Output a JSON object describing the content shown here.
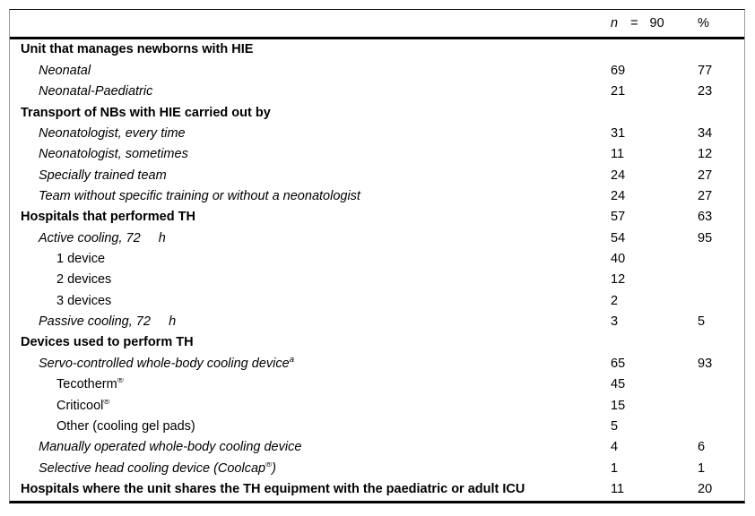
{
  "table": {
    "header": {
      "n_symbol": "n",
      "equals": "=",
      "total": "90",
      "percent": "%"
    },
    "rows": [
      {
        "level": 1,
        "bold": true,
        "italic": false,
        "label": "Unit that manages newborns with HIE",
        "sup": "",
        "suffix": "",
        "n": "",
        "pct": ""
      },
      {
        "level": 2,
        "bold": false,
        "italic": true,
        "label": "Neonatal",
        "sup": "",
        "suffix": "",
        "n": "69",
        "pct": "77"
      },
      {
        "level": 2,
        "bold": false,
        "italic": true,
        "label": "Neonatal-Paediatric",
        "sup": "",
        "suffix": "",
        "n": "21",
        "pct": "23"
      },
      {
        "level": 1,
        "bold": true,
        "italic": false,
        "label": "Transport of NBs with HIE carried out by",
        "sup": "",
        "suffix": "",
        "n": "",
        "pct": ""
      },
      {
        "level": 2,
        "bold": false,
        "italic": true,
        "label": "Neonatologist, every time",
        "sup": "",
        "suffix": "",
        "n": "31",
        "pct": "34"
      },
      {
        "level": 2,
        "bold": false,
        "italic": true,
        "label": "Neonatologist, sometimes",
        "sup": "",
        "suffix": "",
        "n": "11",
        "pct": "12"
      },
      {
        "level": 2,
        "bold": false,
        "italic": true,
        "label": "Specially trained team",
        "sup": "",
        "suffix": "",
        "n": "24",
        "pct": "27"
      },
      {
        "level": 2,
        "bold": false,
        "italic": true,
        "label": "Team without specific training or without a neonatologist",
        "sup": "",
        "suffix": "",
        "n": "24",
        "pct": "27"
      },
      {
        "level": 1,
        "bold": true,
        "italic": false,
        "label": "Hospitals that performed TH",
        "sup": "",
        "suffix": "",
        "n": "57",
        "pct": "63"
      },
      {
        "level": 2,
        "bold": false,
        "italic": true,
        "label": "Active cooling, 72     h",
        "sup": "",
        "suffix": "",
        "n": "54",
        "pct": "95"
      },
      {
        "level": 3,
        "bold": false,
        "italic": false,
        "label": "1 device",
        "sup": "",
        "suffix": "",
        "n": "40",
        "pct": ""
      },
      {
        "level": 3,
        "bold": false,
        "italic": false,
        "label": "2 devices",
        "sup": "",
        "suffix": "",
        "n": "12",
        "pct": ""
      },
      {
        "level": 3,
        "bold": false,
        "italic": false,
        "label": "3 devices",
        "sup": "",
        "suffix": "",
        "n": "2",
        "pct": ""
      },
      {
        "level": 2,
        "bold": false,
        "italic": true,
        "label": "Passive cooling, 72     h",
        "sup": "",
        "suffix": "",
        "n": "3",
        "pct": "5"
      },
      {
        "level": 1,
        "bold": true,
        "italic": false,
        "label": "Devices used to perform TH",
        "sup": "",
        "suffix": "",
        "n": "",
        "pct": ""
      },
      {
        "level": 2,
        "bold": false,
        "italic": true,
        "label": "Servo-controlled whole-body cooling device",
        "sup": "a",
        "suffix": "",
        "n": "65",
        "pct": "93"
      },
      {
        "level": 3,
        "bold": false,
        "italic": false,
        "label": "Tecotherm",
        "sup": "®",
        "suffix": "",
        "n": "45",
        "pct": ""
      },
      {
        "level": 3,
        "bold": false,
        "italic": false,
        "label": "Criticool",
        "sup": "®",
        "suffix": "",
        "n": "15",
        "pct": ""
      },
      {
        "level": 3,
        "bold": false,
        "italic": false,
        "label": "Other (cooling gel pads)",
        "sup": "",
        "suffix": "",
        "n": "5",
        "pct": ""
      },
      {
        "level": 2,
        "bold": false,
        "italic": true,
        "label": "Manually operated whole-body cooling device",
        "sup": "",
        "suffix": "",
        "n": "4",
        "pct": "6"
      },
      {
        "level": 2,
        "bold": false,
        "italic": true,
        "label": "Selective head cooling device (Coolcap",
        "sup": "®",
        "suffix": ")",
        "n": "1",
        "pct": "1"
      },
      {
        "level": 1,
        "bold": true,
        "italic": false,
        "label": "Hospitals where the unit shares the TH equipment with the paediatric or adult ICU",
        "sup": "",
        "suffix": "",
        "n": "11",
        "pct": "20"
      }
    ]
  }
}
